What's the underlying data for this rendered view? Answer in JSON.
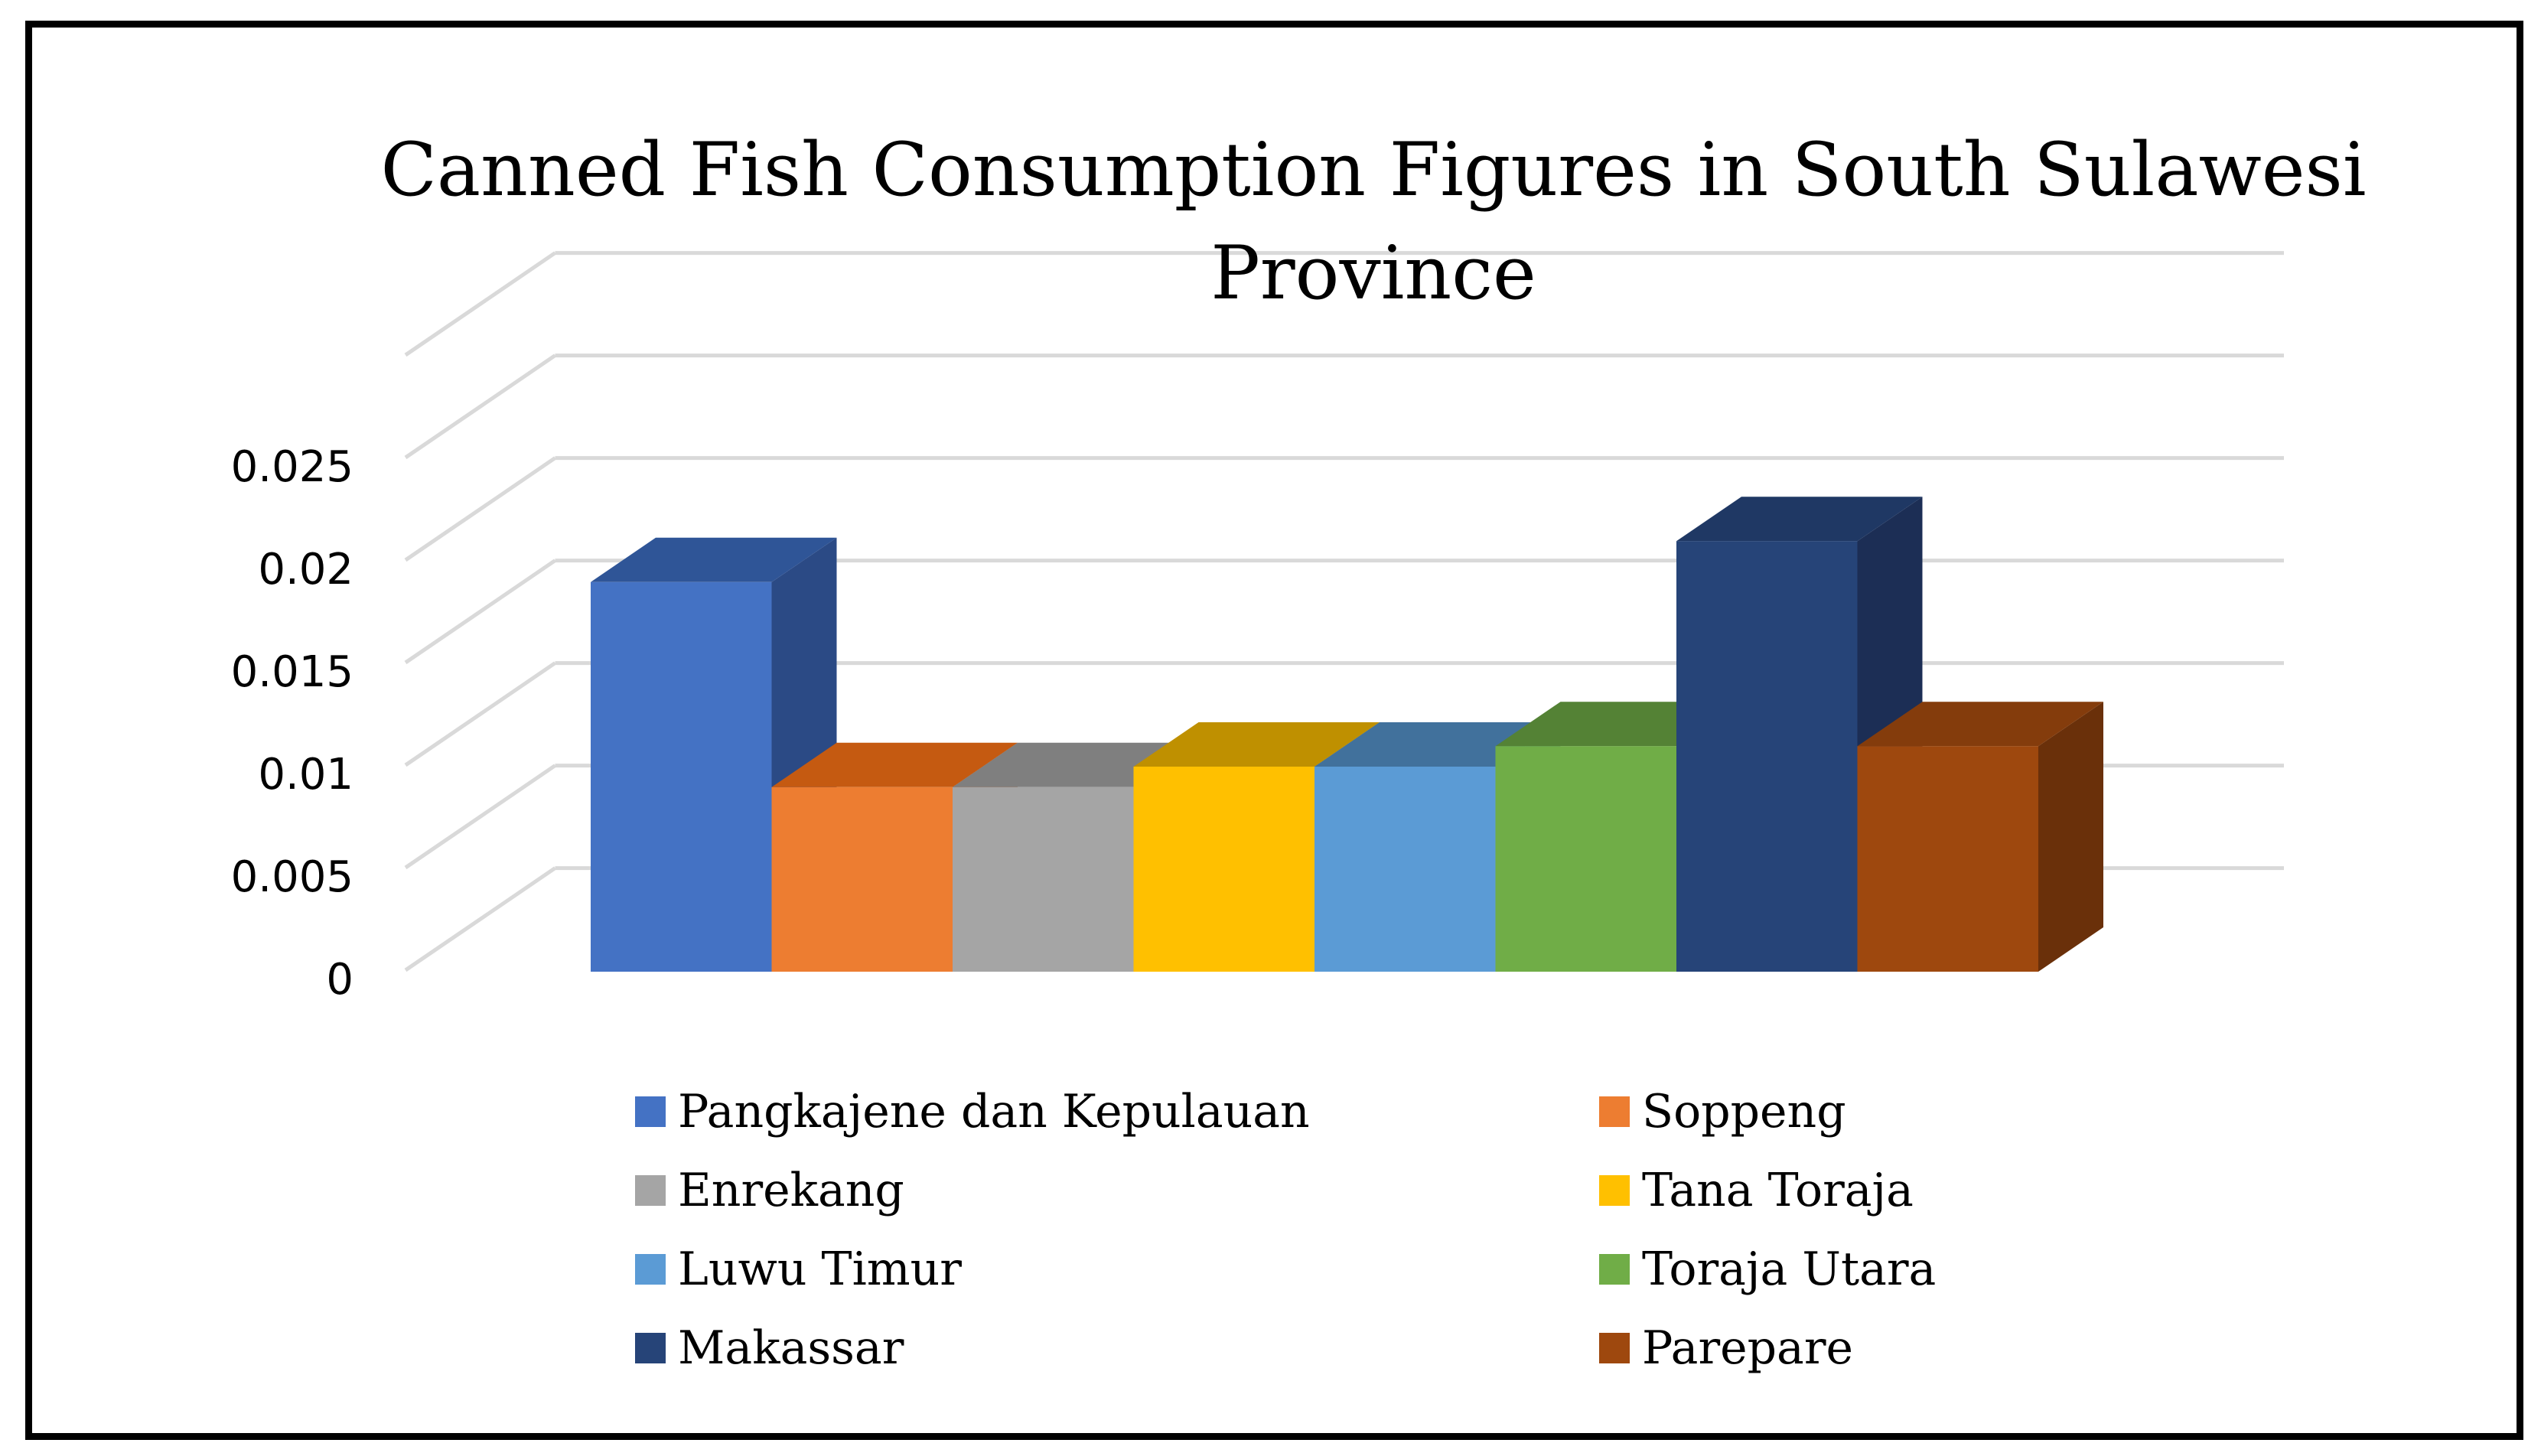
{
  "chart_data": {
    "type": "bar",
    "title": "Canned Fish Consumption Figures in South Sulawesi Province",
    "title_lines": [
      "Canned Fish Consumption Figures in South Sulawesi",
      "Province"
    ],
    "xlabel": "",
    "ylabel": "",
    "ylim": [
      0,
      0.03
    ],
    "y_ticks": [
      "0",
      "0.005",
      "0.01",
      "0.015",
      "0.02",
      "0.025"
    ],
    "grid": true,
    "legend_position": "bottom",
    "series": [
      {
        "name": "Pangkajene dan Kepulauan",
        "value": 0.019,
        "color": "#4472C4",
        "top": "#2F5597",
        "side": "#2B4A85"
      },
      {
        "name": "Soppeng",
        "value": 0.009,
        "color": "#ED7D31",
        "top": "#C55A11",
        "side": "#B85A22"
      },
      {
        "name": "Enrekang",
        "value": 0.009,
        "color": "#A5A5A5",
        "top": "#7F7F7F",
        "side": "#808080"
      },
      {
        "name": "Tana Toraja",
        "value": 0.01,
        "color": "#FFC000",
        "top": "#BF9000",
        "side": "#C09000"
      },
      {
        "name": "Luwu Timur",
        "value": 0.01,
        "color": "#5B9BD5",
        "top": "#41719C",
        "side": "#4A7CAB"
      },
      {
        "name": "Toraja Utara",
        "value": 0.011,
        "color": "#70AD47",
        "top": "#548235",
        "side": "#5A8A39"
      },
      {
        "name": "Makassar",
        "value": 0.021,
        "color": "#264478",
        "top": "#1F3864",
        "side": "#1C2E55"
      },
      {
        "name": "Parepare",
        "value": 0.011,
        "color": "#9E480E",
        "top": "#843C0C",
        "side": "#6A300A"
      }
    ]
  }
}
